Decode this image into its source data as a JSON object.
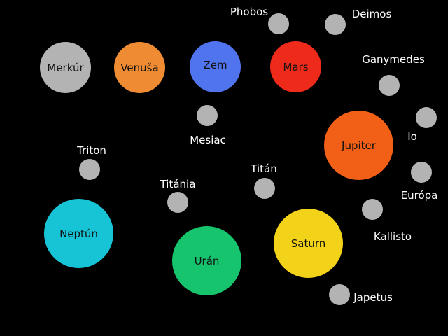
{
  "background": "#000000",
  "moon_color": "#b3b3b3",
  "planets": [
    {
      "id": "merkur",
      "label": "Merkúr",
      "color": "#b3b3b3"
    },
    {
      "id": "venusa",
      "label": "Venuša",
      "color": "#ee8b33"
    },
    {
      "id": "zem",
      "label": "Zem",
      "color": "#4f74ee"
    },
    {
      "id": "mars",
      "label": "Mars",
      "color": "#ee2a1a"
    },
    {
      "id": "jupiter",
      "label": "Jupiter",
      "color": "#f25f17"
    },
    {
      "id": "saturn",
      "label": "Saturn",
      "color": "#f2d31a"
    },
    {
      "id": "uran",
      "label": "Urán",
      "color": "#17c46e"
    },
    {
      "id": "neptun",
      "label": "Neptún",
      "color": "#17c4d6"
    }
  ],
  "moons": [
    {
      "id": "phobos",
      "label": "Phobos",
      "planet": "Mars"
    },
    {
      "id": "deimos",
      "label": "Deimos",
      "planet": "Mars"
    },
    {
      "id": "mesiac",
      "label": "Mesiac",
      "planet": "Zem"
    },
    {
      "id": "ganymedes",
      "label": "Ganymedes",
      "planet": "Jupiter"
    },
    {
      "id": "io",
      "label": "Io",
      "planet": "Jupiter"
    },
    {
      "id": "europa",
      "label": "Európa",
      "planet": "Jupiter"
    },
    {
      "id": "kallisto",
      "label": "Kallisto",
      "planet": "Jupiter"
    },
    {
      "id": "titan",
      "label": "Titán",
      "planet": "Saturn"
    },
    {
      "id": "japetus",
      "label": "Japetus",
      "planet": "Saturn"
    },
    {
      "id": "titania",
      "label": "Titánia",
      "planet": "Urán"
    },
    {
      "id": "triton",
      "label": "Triton",
      "planet": "Neptún"
    }
  ]
}
